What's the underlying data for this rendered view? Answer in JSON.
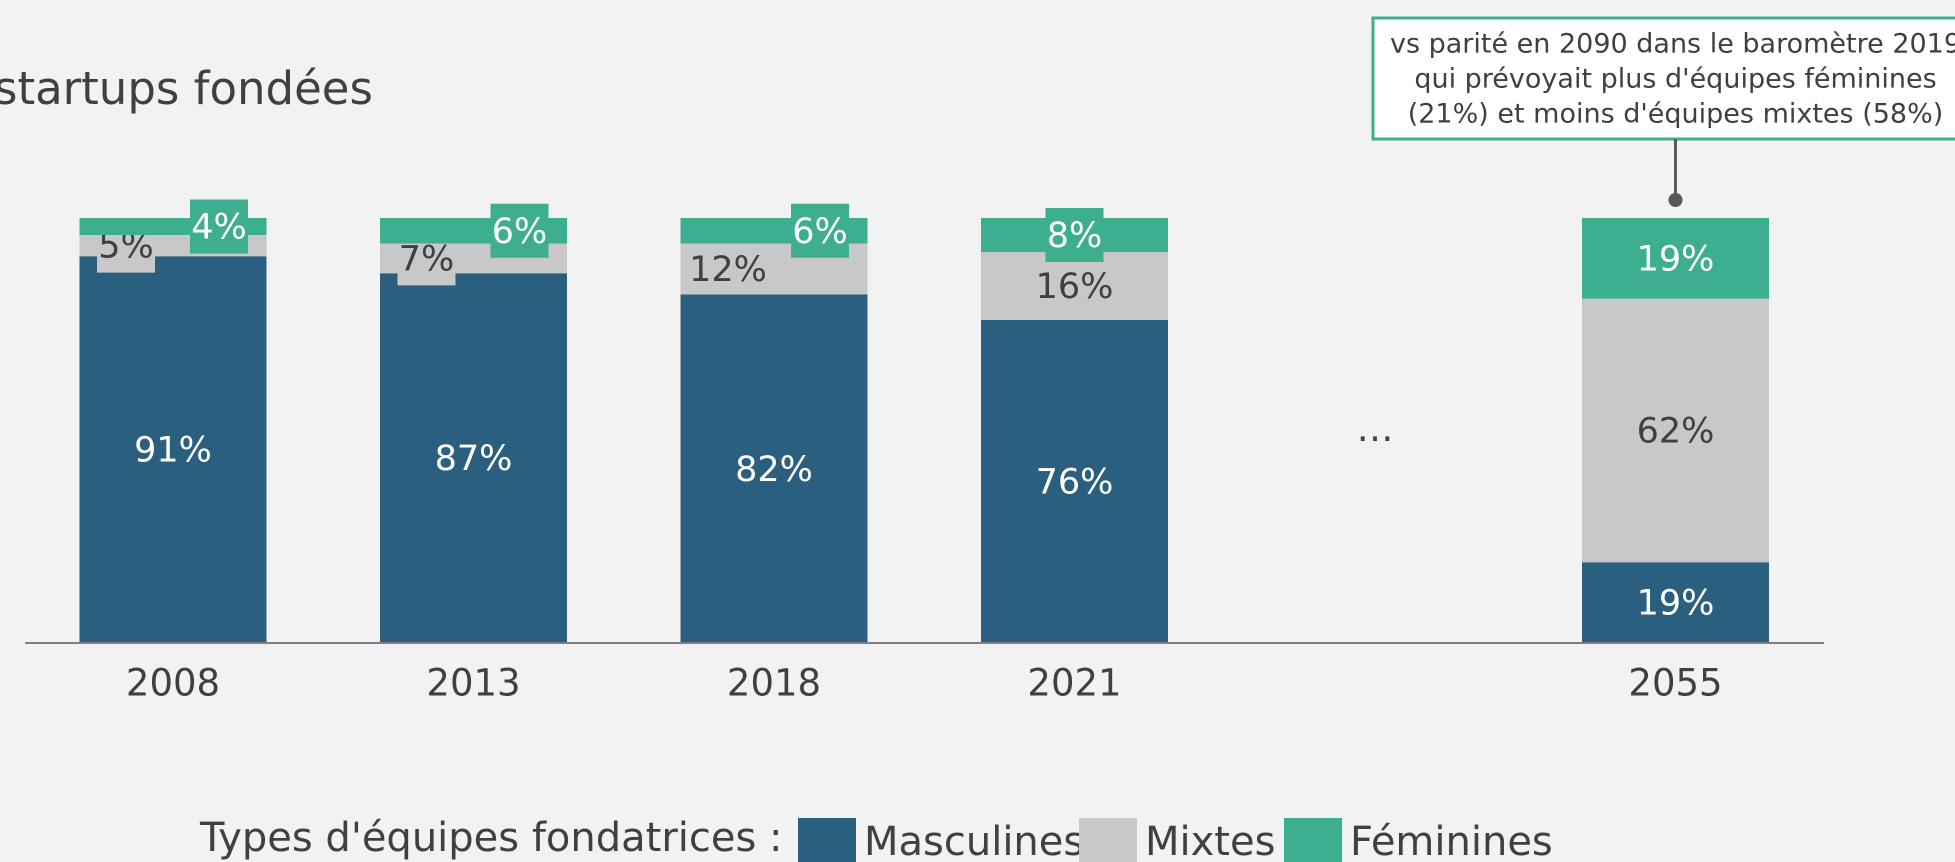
{
  "chart_data": {
    "type": "stacked_bar",
    "title": "startups fondées",
    "categories": [
      "2008",
      "2013",
      "2018",
      "2021",
      "…",
      "2055"
    ],
    "series": [
      {
        "name": "Masculines",
        "color": "#2a5f7f",
        "values": [
          91,
          87,
          82,
          76,
          null,
          19
        ],
        "value_labels": [
          "91%",
          "87%",
          "82%",
          "76%",
          null,
          "19%"
        ]
      },
      {
        "name": "Mixtes",
        "color": "#c8c8c8",
        "values": [
          5,
          7,
          12,
          16,
          null,
          62
        ],
        "value_labels": [
          "5%",
          "7%",
          "12%",
          "16%",
          null,
          "62%"
        ]
      },
      {
        "name": "Féminines",
        "color": "#3dae8f",
        "values": [
          4,
          6,
          6,
          8,
          null,
          19
        ],
        "value_labels": [
          "4%",
          "6%",
          "6%",
          "8%",
          null,
          "19%"
        ]
      }
    ],
    "ylim": [
      0,
      100
    ],
    "legend_title": "Types d'équipes fondatrices :",
    "annotation": [
      "vs parité en 2090 dans le baromètre 2019",
      "qui prévoyait plus d'équipes féminines",
      "(21%) et moins d'équipes mixtes (58%)"
    ]
  }
}
